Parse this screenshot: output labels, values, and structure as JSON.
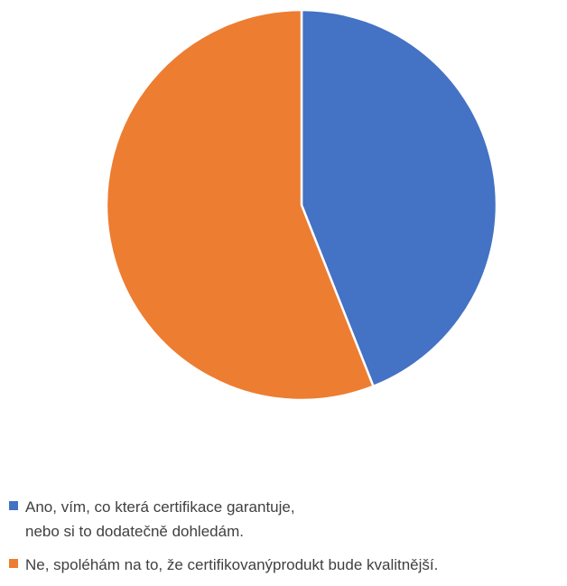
{
  "chart_data": {
    "type": "pie",
    "title": "",
    "start_angle_deg": 0,
    "direction": "clockwise",
    "slices": [
      {
        "label": "Ano, vím, co která certifikace garantuje,\nnebo si to dodatečně dohledám.",
        "value": 44,
        "color": "#4472C4"
      },
      {
        "label": "Ne, spoléhám na to, že certifikovanýprodukt bude kvalitnější.",
        "value": 56,
        "color": "#ED7D31"
      }
    ],
    "legend_position": "bottom"
  }
}
